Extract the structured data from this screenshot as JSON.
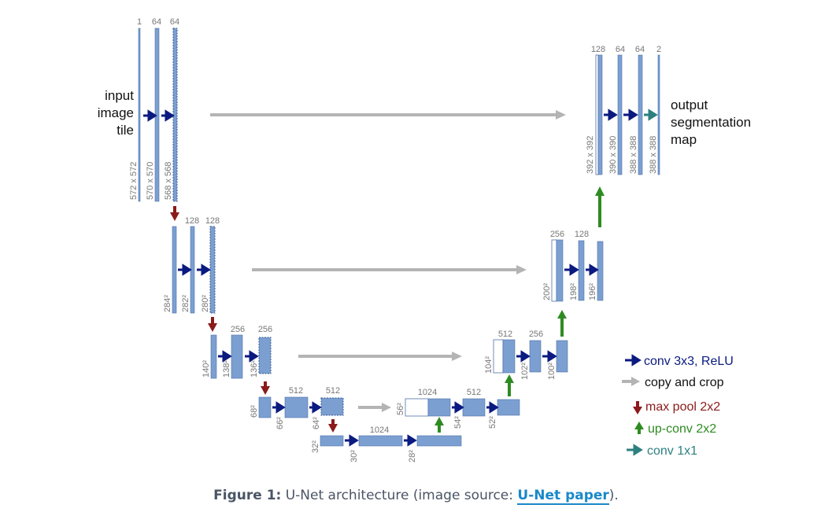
{
  "diagram": {
    "input_label": [
      "input",
      "image",
      "tile"
    ],
    "output_label": [
      "output",
      "segmentation",
      "map"
    ],
    "level1": {
      "channels": [
        "1",
        "64",
        "64"
      ],
      "dims": [
        "572 x 572",
        "570 x 570",
        "568 x 568"
      ]
    },
    "level2": {
      "channels": [
        "128",
        "128"
      ],
      "dims": [
        "284²",
        "282²",
        "280²"
      ]
    },
    "level3": {
      "channels": [
        "256",
        "256"
      ],
      "dims": [
        "140²",
        "138²",
        "136²"
      ]
    },
    "level4": {
      "channels": [
        "512",
        "512"
      ],
      "dims": [
        "68²",
        "66²",
        "64²"
      ]
    },
    "level5": {
      "channels": [
        "1024"
      ],
      "dims": [
        "32²",
        "30²",
        "28²"
      ]
    },
    "up4": {
      "channels": [
        "1024",
        "512"
      ],
      "dims": [
        "56²",
        "54²",
        "52²"
      ]
    },
    "up3": {
      "channels": [
        "512",
        "256"
      ],
      "dims": [
        "104²",
        "102²",
        "100²"
      ]
    },
    "up2": {
      "channels": [
        "256",
        "128"
      ],
      "dims": [
        "200²",
        "198²",
        "196²"
      ]
    },
    "up1": {
      "channels": [
        "128",
        "64",
        "64",
        "2"
      ],
      "dims": [
        "392 x 392",
        "390 x 390",
        "388 x 388",
        "388 x 388"
      ]
    },
    "legend": [
      {
        "label": "conv 3x3, ReLU",
        "color": "#0a1a80",
        "icon": "arrow-right-icon"
      },
      {
        "label": "copy and crop",
        "color": "#b4b4b4",
        "icon": "arrow-right-icon"
      },
      {
        "label": "max pool 2x2",
        "color": "#8b1a1a",
        "icon": "arrow-down-icon"
      },
      {
        "label": "up-conv 2x2",
        "color": "#2e8b22",
        "icon": "arrow-up-icon"
      },
      {
        "label": "conv 1x1",
        "color": "#2e8080",
        "icon": "arrow-right-icon"
      }
    ],
    "colors": {
      "block": "#7b9fd1",
      "block_stroke": "#4f72a8",
      "label": "#777777",
      "conv": "#0a1a80",
      "copy": "#b4b4b4",
      "pool": "#8b1a1a",
      "upconv": "#2e8b22",
      "conv1x1": "#2e8080"
    }
  },
  "caption": {
    "figure": "Figure 1:",
    "text": " U-Net architecture (image source: ",
    "link": "U-Net paper",
    "end": ")."
  }
}
